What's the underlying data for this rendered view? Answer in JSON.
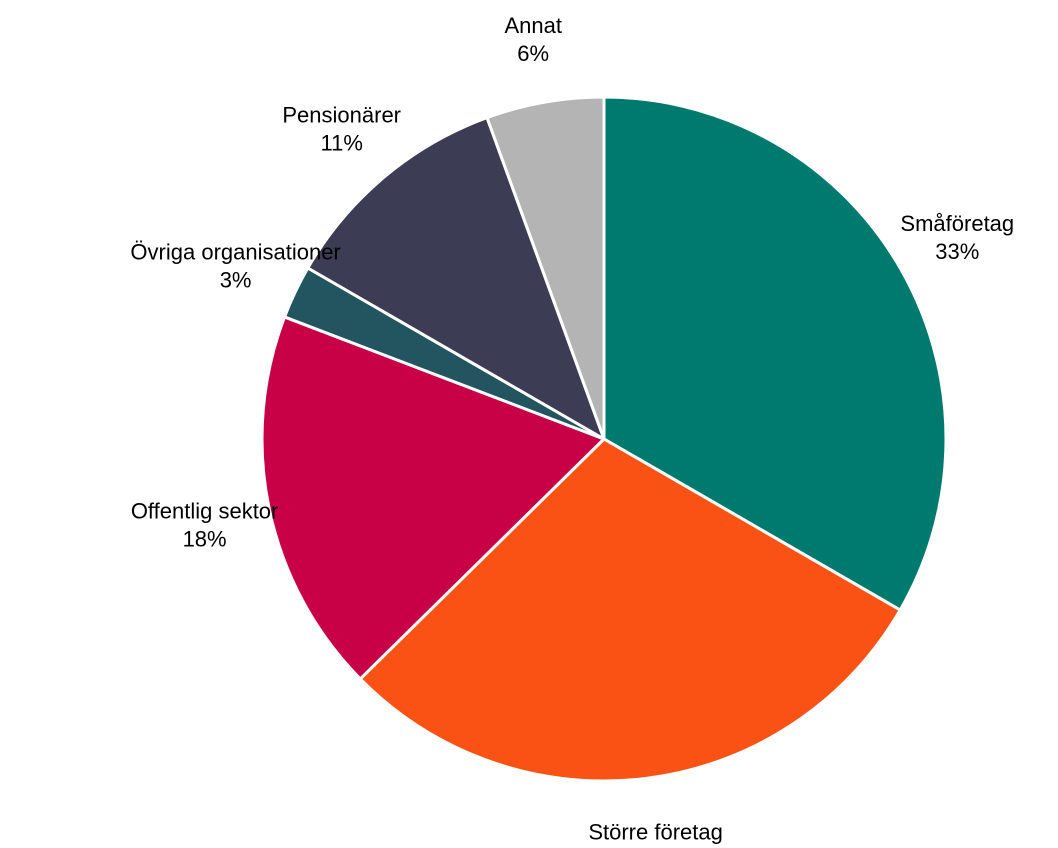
{
  "chart_data": {
    "type": "pie",
    "title": "",
    "slices": [
      {
        "label": "Småföretag",
        "percent_label": "33%",
        "value": 33,
        "color": "#007A6E"
      },
      {
        "label": "Större företag",
        "percent_label": "29%",
        "value": 29,
        "color": "#FA5214"
      },
      {
        "label": "Offentlig sektor",
        "percent_label": "18%",
        "value": 18,
        "color": "#C80046"
      },
      {
        "label": "Övriga organisationer",
        "percent_label": "3%",
        "value": 2.5,
        "color": "#235560"
      },
      {
        "label": "Pensionärer",
        "percent_label": "11%",
        "value": 11,
        "color": "#3C3C55"
      },
      {
        "label": "Annat",
        "percent_label": "6%",
        "value": 5.5,
        "color": "#B4B4B4"
      }
    ]
  }
}
